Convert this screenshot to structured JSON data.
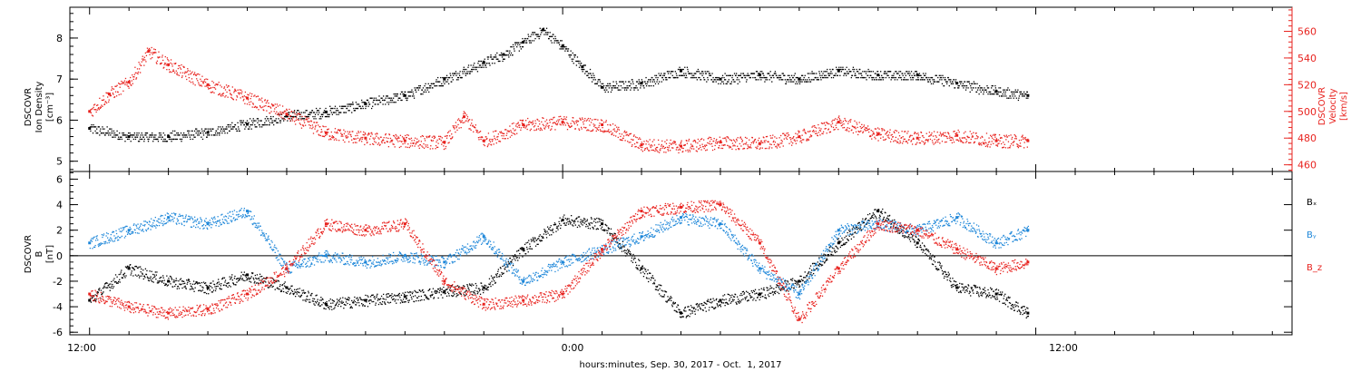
{
  "figure": {
    "xlabel": "hours:minutes, Sep. 30, 2017 - Oct.  1, 2017",
    "x_tick_labels": [
      "12:00",
      "0:00",
      "12:00"
    ]
  },
  "colors": {
    "black": "#000000",
    "red": "#e8231f",
    "blue": "#1e87d9"
  },
  "chart_data": [
    {
      "type": "scatter",
      "panel": "plasma",
      "x_unit": "hours since 2017-09-30 00:00",
      "xlim": [
        11.5,
        42.5
      ],
      "ylabel_left": [
        "DSCOVR",
        "Ion Density",
        "[cm⁻³]"
      ],
      "ylabel_right": [
        "DSCOVR",
        "Velocity",
        "[km/s]"
      ],
      "ylim_left": [
        4.75,
        8.75
      ],
      "ylim_right": [
        455,
        578
      ],
      "yticks_left": [
        "5",
        "6",
        "7",
        "8"
      ],
      "yticks_left_values": [
        5,
        6,
        7,
        8
      ],
      "yticks_right": [
        "460",
        "480",
        "500",
        "520",
        "540",
        "560"
      ],
      "yticks_right_values": [
        460,
        480,
        500,
        520,
        540,
        560
      ],
      "series": [
        {
          "color": "black",
          "axis": "left",
          "x": [
            12.0,
            13.0,
            14.0,
            15.0,
            16.0,
            17.0,
            18.0,
            19.0,
            20.0,
            21.0,
            22.0,
            22.5,
            23.0,
            23.5,
            24.0,
            24.5,
            25.0,
            26.0,
            27.0,
            28.0,
            29.0,
            30.0,
            31.0,
            32.0,
            33.0,
            34.0,
            35.0,
            35.8
          ],
          "values": [
            5.8,
            5.6,
            5.6,
            5.7,
            5.9,
            6.1,
            6.2,
            6.4,
            6.6,
            7.0,
            7.4,
            7.6,
            7.9,
            8.2,
            7.8,
            7.3,
            6.8,
            6.9,
            7.2,
            7.0,
            7.1,
            7.0,
            7.2,
            7.1,
            7.1,
            6.9,
            6.7,
            6.6
          ]
        },
        {
          "color": "red",
          "axis": "right",
          "x": [
            12.0,
            12.5,
            13.0,
            13.5,
            14.0,
            15.0,
            16.0,
            17.0,
            18.0,
            19.0,
            20.0,
            21.0,
            21.5,
            22.0,
            23.0,
            24.0,
            25.0,
            26.0,
            27.0,
            28.0,
            29.0,
            30.0,
            31.0,
            32.0,
            33.0,
            34.0,
            35.0,
            35.8
          ],
          "values": [
            500,
            513,
            522,
            545,
            535,
            520,
            510,
            498,
            484,
            480,
            478,
            477,
            496,
            478,
            490,
            492,
            490,
            475,
            474,
            477,
            476,
            481,
            492,
            483,
            480,
            482,
            478,
            478
          ]
        }
      ]
    },
    {
      "type": "scatter",
      "panel": "magnetic field",
      "x_unit": "hours since 2017-09-30 00:00",
      "xlim": [
        11.5,
        42.5
      ],
      "ylabel": [
        "DSCOVR",
        "B",
        "[nT]"
      ],
      "ylim": [
        -6.2,
        6.6
      ],
      "yticks": [
        "-6",
        "-4",
        "-2",
        "0",
        "2",
        "4",
        "6"
      ],
      "yticks_values": [
        -6,
        -4,
        -2,
        0,
        2,
        4,
        6
      ],
      "zero_line": true,
      "series": [
        {
          "name": "Bₓ",
          "color": "black",
          "x": [
            12.0,
            13.0,
            14.0,
            15.0,
            16.0,
            17.0,
            18.0,
            19.0,
            20.0,
            21.0,
            22.0,
            23.0,
            24.0,
            25.0,
            26.0,
            27.0,
            28.0,
            29.0,
            30.0,
            31.0,
            32.0,
            33.0,
            34.0,
            35.0,
            35.8
          ],
          "values": [
            -3.5,
            -1.0,
            -2.0,
            -2.5,
            -1.5,
            -2.5,
            -3.8,
            -3.5,
            -3.2,
            -2.8,
            -2.5,
            0.5,
            2.8,
            2.5,
            -1.0,
            -4.5,
            -3.5,
            -3.0,
            -2.0,
            1.0,
            3.5,
            1.0,
            -2.5,
            -3.0,
            -4.5
          ]
        },
        {
          "name": "Bᵧ",
          "color": "blue",
          "x": [
            12.0,
            13.0,
            14.0,
            15.0,
            16.0,
            17.0,
            18.0,
            19.0,
            20.0,
            21.0,
            22.0,
            23.0,
            24.0,
            25.0,
            26.0,
            27.0,
            28.0,
            29.0,
            30.0,
            31.0,
            32.0,
            33.0,
            34.0,
            35.0,
            35.8
          ],
          "values": [
            1.0,
            2.0,
            3.0,
            2.5,
            3.5,
            -1.0,
            0.0,
            -0.5,
            0.0,
            -0.5,
            1.5,
            -2.0,
            -0.5,
            0.5,
            1.5,
            3.0,
            2.5,
            -1.0,
            -3.0,
            2.0,
            2.5,
            2.0,
            3.0,
            1.0,
            2.0
          ]
        },
        {
          "name": "B_z",
          "color": "red",
          "x": [
            12.0,
            13.0,
            14.0,
            15.0,
            16.0,
            17.0,
            18.0,
            19.0,
            20.0,
            21.0,
            22.0,
            23.0,
            24.0,
            25.0,
            26.0,
            27.0,
            28.0,
            29.0,
            30.0,
            31.0,
            32.0,
            33.0,
            34.0,
            35.0,
            35.8
          ],
          "values": [
            -3.0,
            -4.0,
            -4.5,
            -4.2,
            -3.0,
            -1.0,
            2.5,
            2.0,
            2.5,
            -2.0,
            -3.8,
            -3.5,
            -3.0,
            0.5,
            3.5,
            3.8,
            4.0,
            1.0,
            -5.0,
            -1.0,
            2.5,
            2.0,
            0.5,
            -1.0,
            -0.5
          ]
        }
      ]
    }
  ]
}
